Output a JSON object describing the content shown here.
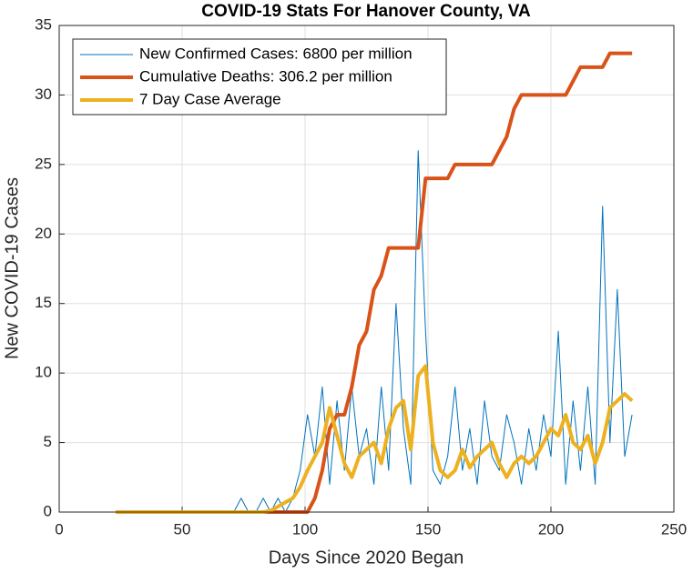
{
  "chart_data": {
    "type": "line",
    "title": "COVID-19 Stats For Hanover County, VA",
    "xlabel": "Days Since 2020 Began",
    "ylabel": "New COVID-19 Cases",
    "x": [
      23,
      26,
      29,
      32,
      35,
      38,
      41,
      44,
      47,
      50,
      53,
      56,
      59,
      62,
      65,
      68,
      71,
      74,
      77,
      80,
      83,
      86,
      89,
      92,
      95,
      98,
      101,
      104,
      107,
      110,
      113,
      116,
      119,
      122,
      125,
      128,
      131,
      134,
      137,
      140,
      143,
      146,
      149,
      152,
      155,
      158,
      161,
      164,
      167,
      170,
      173,
      176,
      179,
      182,
      185,
      188,
      191,
      194,
      197,
      200,
      203,
      206,
      209,
      212,
      215,
      218,
      221,
      224,
      227,
      230,
      233
    ],
    "series": [
      {
        "name": "New Confirmed Cases: 6800 per million",
        "color": "#0072BD",
        "width": 1,
        "values": [
          0,
          0,
          0,
          0,
          0,
          0,
          0,
          0,
          0,
          0,
          0,
          0,
          0,
          0,
          0,
          0,
          0,
          1,
          0,
          0,
          1,
          0,
          1,
          0,
          1,
          3,
          7,
          4,
          9,
          2,
          8,
          3,
          9,
          4,
          6,
          2,
          9,
          3,
          15,
          6,
          2,
          26,
          13,
          3,
          2,
          4,
          9,
          3,
          6,
          2,
          8,
          4,
          3,
          7,
          5,
          2,
          6,
          3,
          7,
          4,
          13,
          2,
          8,
          3,
          9,
          2,
          22,
          5,
          16,
          4,
          7
        ]
      },
      {
        "name": "Cumulative Deaths: 306.2 per million",
        "color": "#D95319",
        "width": 4,
        "values": [
          0,
          0,
          0,
          0,
          0,
          0,
          0,
          0,
          0,
          0,
          0,
          0,
          0,
          0,
          0,
          0,
          0,
          0,
          0,
          0,
          0,
          0,
          0,
          0,
          0,
          0,
          0,
          1,
          3,
          6,
          7,
          7,
          9,
          12,
          13,
          16,
          17,
          19,
          19,
          19,
          19,
          19,
          24,
          24,
          24,
          24,
          25,
          25,
          25,
          25,
          25,
          25,
          26,
          27,
          29,
          30,
          30,
          30,
          30,
          30,
          30,
          30,
          31,
          32,
          32,
          32,
          32,
          33,
          33,
          33,
          33
        ]
      },
      {
        "name": "7 Day Case Average",
        "color": "#EDB120",
        "width": 4,
        "values": [
          0,
          0,
          0,
          0,
          0,
          0,
          0,
          0,
          0,
          0,
          0,
          0,
          0,
          0,
          0,
          0,
          0,
          0,
          0,
          0,
          0,
          0.1,
          0.4,
          0.7,
          1,
          1.8,
          3,
          4,
          5,
          7.5,
          5.5,
          3.5,
          2.5,
          4,
          4.5,
          5,
          3.5,
          6,
          7.5,
          8,
          4.5,
          9.8,
          10.5,
          5,
          3,
          2.5,
          3,
          4.5,
          3.2,
          4,
          4.5,
          5,
          3.5,
          2.5,
          3.5,
          4,
          3.5,
          4,
          5,
          6,
          5.5,
          7,
          5,
          4.5,
          5.5,
          3.5,
          5,
          7.5,
          8,
          8.5,
          8
        ]
      }
    ],
    "xlim": [
      0,
      250
    ],
    "xticks": [
      0,
      50,
      100,
      150,
      200,
      250
    ],
    "ylim": [
      0,
      35
    ],
    "yticks": [
      0,
      5,
      10,
      15,
      20,
      25,
      30,
      35
    ],
    "grid": true,
    "legend": "top-left"
  }
}
